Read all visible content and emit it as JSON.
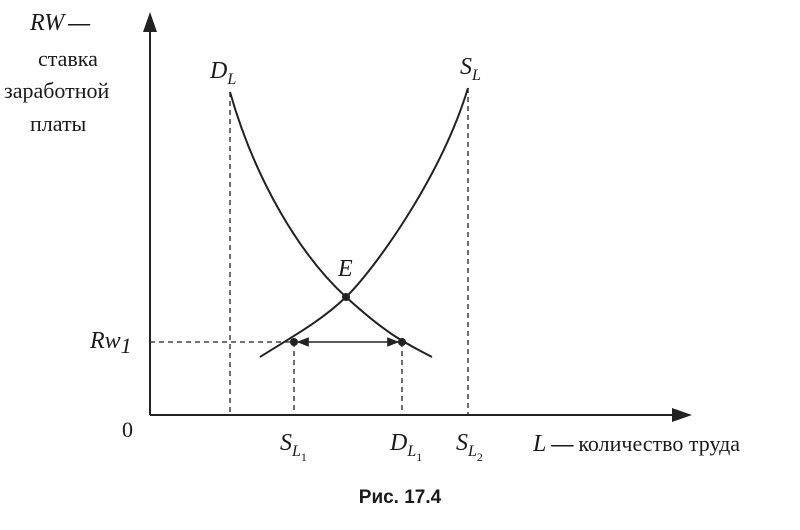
{
  "axes": {
    "y_label": {
      "symbol": "RW",
      "dash": "—",
      "lines": [
        "ставка",
        "заработной",
        "платы"
      ]
    },
    "x_label": {
      "symbol": "L",
      "dash": "—",
      "text": "количество труда"
    },
    "origin": "0"
  },
  "curves": {
    "demand": {
      "main": "D",
      "sub": "L"
    },
    "supply": {
      "main": "S",
      "sub": "L"
    }
  },
  "points": {
    "equilibrium": "E"
  },
  "rate": {
    "main": "Rw",
    "sub": "1"
  },
  "x_marks": [
    {
      "main": "S",
      "sub": "L",
      "subsub": "1"
    },
    {
      "main": "D",
      "sub": "L",
      "subsub": "1"
    },
    {
      "main": "S",
      "sub": "L",
      "subsub": "2"
    }
  ],
  "caption": "Рис. 17.4"
}
